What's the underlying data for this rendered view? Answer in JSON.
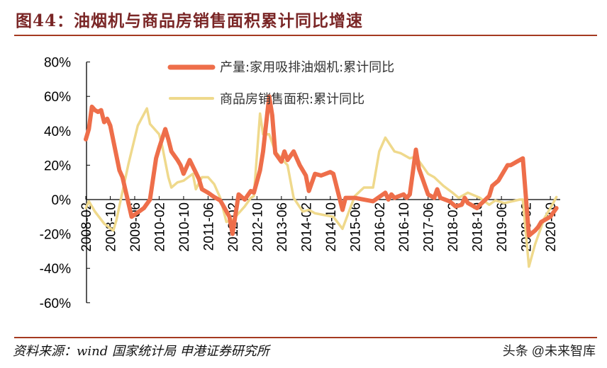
{
  "title": "图44：油烟机与商品房销售面积累计同比增速",
  "footer": {
    "source": "资料来源：wind 国家统计局 申港证券研究所",
    "brand": "头条 @未来智库"
  },
  "colors": {
    "title": "#7a2626",
    "rule": "#a53a20",
    "series1": "#ee6e4a",
    "series2": "#efd98c"
  },
  "chart_data": {
    "type": "line",
    "title": "",
    "xlabel": "",
    "ylabel": "",
    "ylim": [
      -60,
      80
    ],
    "yticks": [
      "80%",
      "60%",
      "40%",
      "20%",
      "0%",
      "-20%",
      "-40%",
      "-60%"
    ],
    "ytick_values": [
      80,
      60,
      40,
      20,
      0,
      -20,
      -40,
      -60
    ],
    "xticks": [
      "2008-02",
      "2008-10",
      "2009-06",
      "2010-02",
      "2010-10",
      "2011-06",
      "2012-02",
      "2012-10",
      "2013-06",
      "2014-02",
      "2014-10",
      "2015-06",
      "2016-02",
      "2016-10",
      "2017-06",
      "2018-02",
      "2018-10",
      "2019-06",
      "2020-02",
      "2020-10"
    ],
    "grid": false,
    "legend": "top",
    "series": [
      {
        "name": "产量:家用吸排油烟机:累计同比",
        "points": [
          [
            "2008-02",
            35
          ],
          [
            "2008-03",
            41
          ],
          [
            "2008-04",
            54
          ],
          [
            "2008-05",
            52
          ],
          [
            "2008-06",
            51
          ],
          [
            "2008-07",
            52
          ],
          [
            "2008-08",
            45
          ],
          [
            "2008-09",
            47
          ],
          [
            "2008-10",
            43
          ],
          [
            "2009-01",
            17
          ],
          [
            "2009-02",
            13
          ],
          [
            "2009-05",
            -10
          ],
          [
            "2009-09",
            -5
          ],
          [
            "2009-11",
            0
          ],
          [
            "2010-01",
            24
          ],
          [
            "2010-02",
            30
          ],
          [
            "2010-04",
            41
          ],
          [
            "2010-05",
            35
          ],
          [
            "2010-06",
            28
          ],
          [
            "2010-08",
            23
          ],
          [
            "2010-09",
            20
          ],
          [
            "2010-10",
            15
          ],
          [
            "2010-12",
            23
          ],
          [
            "2011-03",
            12
          ],
          [
            "2011-04",
            6
          ],
          [
            "2011-06",
            4
          ],
          [
            "2011-08",
            1.5
          ],
          [
            "2011-10",
            -0.5
          ],
          [
            "2012-01",
            -10
          ],
          [
            "2012-02",
            -20
          ],
          [
            "2012-04",
            3
          ],
          [
            "2012-06",
            0
          ],
          [
            "2012-08",
            5
          ],
          [
            "2012-09",
            4
          ],
          [
            "2012-11",
            17
          ],
          [
            "2012-12",
            28
          ],
          [
            "2013-02",
            60
          ],
          [
            "2013-03",
            49
          ],
          [
            "2013-04",
            27
          ],
          [
            "2013-06",
            22
          ],
          [
            "2013-07",
            28
          ],
          [
            "2013-08",
            23
          ],
          [
            "2013-10",
            28
          ],
          [
            "2013-12",
            20
          ],
          [
            "2014-02",
            14
          ],
          [
            "2014-03",
            5
          ],
          [
            "2014-05",
            15
          ],
          [
            "2014-07",
            14
          ],
          [
            "2014-10",
            16
          ],
          [
            "2014-11",
            15
          ],
          [
            "2015-02",
            -6
          ],
          [
            "2015-03",
            1
          ],
          [
            "2015-06",
            1
          ],
          [
            "2015-12",
            -1
          ],
          [
            "2016-04",
            4
          ],
          [
            "2016-05",
            0
          ],
          [
            "2016-06",
            3
          ],
          [
            "2016-07",
            1
          ],
          [
            "2016-10",
            3
          ],
          [
            "2016-11",
            1
          ],
          [
            "2016-12",
            3
          ],
          [
            "2017-02",
            29
          ],
          [
            "2017-03",
            18
          ],
          [
            "2017-06",
            3
          ],
          [
            "2017-07",
            2
          ],
          [
            "2017-08",
            1
          ],
          [
            "2017-09",
            6
          ],
          [
            "2017-10",
            1
          ],
          [
            "2018-01",
            -1
          ],
          [
            "2018-03",
            -4
          ],
          [
            "2018-05",
            -3
          ],
          [
            "2018-06",
            1
          ],
          [
            "2018-07",
            -2
          ],
          [
            "2018-10",
            -5
          ],
          [
            "2018-11",
            -3
          ],
          [
            "2019-02",
            2
          ],
          [
            "2019-03",
            8
          ],
          [
            "2019-05",
            11
          ],
          [
            "2019-08",
            20
          ],
          [
            "2019-09",
            20
          ],
          [
            "2019-10",
            21
          ],
          [
            "2019-11",
            22
          ],
          [
            "2020-01",
            24
          ],
          [
            "2020-03",
            -21
          ],
          [
            "2020-05",
            -18
          ],
          [
            "2020-06",
            -16
          ],
          [
            "2020-07",
            -13
          ],
          [
            "2020-10",
            -10
          ],
          [
            "2020-12",
            -5
          ]
        ]
      },
      {
        "name": "商品房销售面积:累计同比",
        "points": [
          [
            "2008-02",
            -5
          ],
          [
            "2008-03",
            -1
          ],
          [
            "2008-05",
            -7
          ],
          [
            "2008-08",
            -14
          ],
          [
            "2008-11",
            -18
          ],
          [
            "2008-12",
            -12
          ],
          [
            "2009-04",
            21
          ],
          [
            "2009-07",
            43
          ],
          [
            "2009-10",
            53
          ],
          [
            "2009-11",
            44
          ],
          [
            "2010-02",
            38
          ],
          [
            "2010-03",
            31
          ],
          [
            "2010-05",
            13
          ],
          [
            "2010-06",
            7
          ],
          [
            "2010-08",
            10
          ],
          [
            "2010-10",
            11
          ],
          [
            "2011-01",
            15
          ],
          [
            "2011-02",
            6
          ],
          [
            "2011-04",
            13
          ],
          [
            "2011-06",
            13
          ],
          [
            "2011-08",
            9
          ],
          [
            "2011-10",
            1
          ],
          [
            "2011-12",
            -13
          ],
          [
            "2012-02",
            -12
          ],
          [
            "2012-04",
            -8
          ],
          [
            "2012-06",
            -4
          ],
          [
            "2012-08",
            1
          ],
          [
            "2012-09",
            2
          ],
          [
            "2012-11",
            50
          ],
          [
            "2012-12",
            38
          ],
          [
            "2013-02",
            38
          ],
          [
            "2013-04",
            28
          ],
          [
            "2013-06",
            24
          ],
          [
            "2013-08",
            20
          ],
          [
            "2013-10",
            1
          ],
          [
            "2014-01",
            -7
          ],
          [
            "2014-03",
            -6
          ],
          [
            "2014-05",
            -8
          ],
          [
            "2014-11",
            -10
          ],
          [
            "2015-02",
            -17
          ],
          [
            "2015-06",
            2
          ],
          [
            "2015-09",
            7
          ],
          [
            "2015-12",
            7
          ],
          [
            "2016-02",
            28
          ],
          [
            "2016-04",
            36
          ],
          [
            "2016-07",
            28
          ],
          [
            "2016-09",
            27
          ],
          [
            "2016-12",
            24
          ],
          [
            "2017-02",
            25
          ],
          [
            "2017-06",
            15
          ],
          [
            "2017-08",
            13
          ],
          [
            "2017-11",
            8
          ],
          [
            "2018-02",
            4
          ],
          [
            "2018-04",
            1
          ],
          [
            "2018-07",
            4
          ],
          [
            "2018-11",
            1
          ],
          [
            "2019-02",
            -3
          ],
          [
            "2019-04",
            -0.5
          ],
          [
            "2019-07",
            -2
          ],
          [
            "2019-12",
            0
          ],
          [
            "2020-01",
            0
          ],
          [
            "2020-03",
            -39
          ],
          [
            "2020-05",
            -26
          ],
          [
            "2020-08",
            -11
          ],
          [
            "2020-10",
            -5
          ],
          [
            "2020-12",
            1.5
          ]
        ]
      }
    ]
  }
}
